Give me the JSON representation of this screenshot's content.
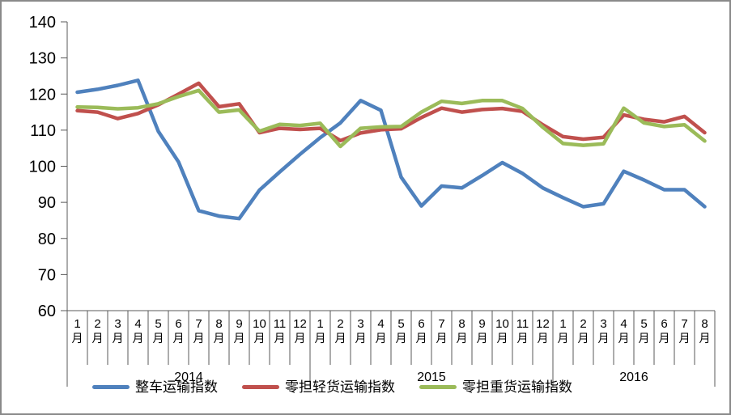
{
  "chart_data": {
    "type": "line",
    "title": "",
    "xlabel": "",
    "ylabel": "",
    "ylim": [
      60,
      140
    ],
    "ytick_step": 10,
    "grid": false,
    "legend_position": "bottom",
    "month_suffix": "月",
    "month_labels": [
      "1",
      "2",
      "3",
      "4",
      "5",
      "6",
      "7",
      "8",
      "9",
      "10",
      "11",
      "12",
      "1",
      "2",
      "3",
      "4",
      "5",
      "6",
      "7",
      "8",
      "9",
      "10",
      "11",
      "12",
      "1",
      "2",
      "3",
      "4",
      "5",
      "6",
      "7",
      "8"
    ],
    "year_groups": [
      {
        "label": "2014",
        "count": 12
      },
      {
        "label": "2015",
        "count": 12
      },
      {
        "label": "2016",
        "count": 8
      }
    ],
    "series": [
      {
        "name": "整车运输指数",
        "color": "#4F81BD",
        "values": [
          120.5,
          121.3,
          122.4,
          123.8,
          109.7,
          101.2,
          87.7,
          86.2,
          85.5,
          93.4,
          98.4,
          103.3,
          107.9,
          112.0,
          118.2,
          115.5,
          97.0,
          89.0,
          94.5,
          94.0,
          97.4,
          101.0,
          98.0,
          94.0,
          91.3,
          88.8,
          89.6,
          98.6,
          96.2,
          93.5,
          93.5,
          88.8
        ]
      },
      {
        "name": "零担轻货运输指数",
        "color": "#C0504D",
        "values": [
          115.4,
          115.0,
          113.2,
          114.6,
          117.0,
          120.0,
          123.0,
          116.5,
          117.3,
          109.3,
          110.5,
          110.2,
          110.5,
          107.1,
          109.2,
          110.1,
          110.4,
          113.5,
          116.1,
          115.0,
          115.7,
          116.0,
          115.2,
          111.5,
          108.2,
          107.5,
          108.0,
          114.2,
          113.0,
          112.3,
          113.8,
          109.3
        ]
      },
      {
        "name": "零担重货运输指数",
        "color": "#9BBB59",
        "values": [
          116.4,
          116.3,
          115.9,
          116.2,
          117.3,
          119.3,
          121.0,
          115.0,
          115.6,
          109.7,
          111.6,
          111.3,
          111.9,
          105.5,
          110.5,
          110.9,
          111.0,
          115.0,
          118.0,
          117.4,
          118.2,
          118.2,
          116.0,
          110.8,
          106.3,
          105.8,
          106.2,
          116.1,
          112.0,
          111.0,
          111.5,
          107.0
        ]
      }
    ]
  }
}
